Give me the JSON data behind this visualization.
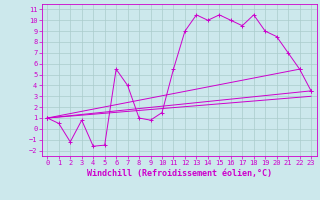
{
  "bg_color": "#cce8ec",
  "grid_color": "#aacccc",
  "line_color": "#cc00cc",
  "xlabel": "Windchill (Refroidissement éolien,°C)",
  "xlim": [
    -0.5,
    23.5
  ],
  "ylim": [
    -2.5,
    11.5
  ],
  "xticks": [
    0,
    1,
    2,
    3,
    4,
    5,
    6,
    7,
    8,
    9,
    10,
    11,
    12,
    13,
    14,
    15,
    16,
    17,
    18,
    19,
    20,
    21,
    22,
    23
  ],
  "yticks": [
    -2,
    -1,
    0,
    1,
    2,
    3,
    4,
    5,
    6,
    7,
    8,
    9,
    10,
    11
  ],
  "line1_x": [
    0,
    1,
    2,
    3,
    4,
    5,
    6,
    7,
    8,
    9,
    10,
    11,
    12,
    13,
    14,
    15,
    16,
    17,
    18,
    19,
    20,
    21,
    22,
    23
  ],
  "line1_y": [
    1.0,
    0.5,
    -1.2,
    0.8,
    -1.6,
    -1.5,
    5.5,
    4.0,
    1.0,
    0.8,
    1.5,
    5.5,
    9.0,
    10.5,
    10.0,
    10.5,
    10.0,
    9.5,
    10.5,
    9.0,
    8.5,
    7.0,
    5.5,
    3.5
  ],
  "line2_x": [
    0,
    22
  ],
  "line2_y": [
    1.0,
    5.5
  ],
  "line3_x": [
    0,
    23
  ],
  "line3_y": [
    1.0,
    3.5
  ],
  "line4_x": [
    0,
    23
  ],
  "line4_y": [
    1.0,
    3.0
  ],
  "tick_fontsize": 5.0,
  "xlabel_fontsize": 6.0
}
